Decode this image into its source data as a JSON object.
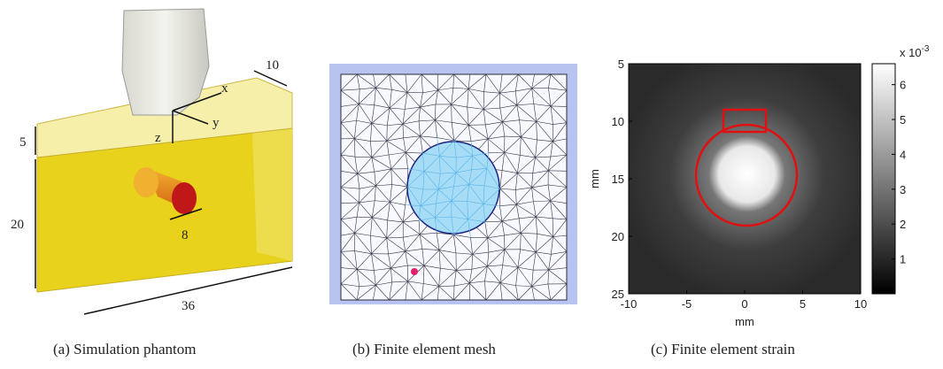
{
  "panels": [
    {
      "caption": "(a) Simulation phantom",
      "labels": {
        "back_width": 10,
        "axis_x": "x",
        "axis_y": "y",
        "axis_z": "z",
        "top_depth": 5,
        "height": 20,
        "diameter": 8,
        "length": 36
      }
    },
    {
      "caption": "(b) Finite element mesh"
    },
    {
      "caption": "(c) Finite element strain",
      "xlabel": "mm",
      "ylabel": "mm",
      "xlim": [
        -10,
        10
      ],
      "ylim": [
        25,
        5
      ],
      "xticks": [
        -10,
        -5,
        0,
        5,
        10
      ],
      "yticks": [
        5,
        10,
        15,
        20,
        25
      ],
      "colorbar": {
        "label": "x 10",
        "exponent": "-3",
        "lim": [
          0,
          6.6
        ],
        "ticks": [
          1,
          2,
          3,
          4,
          5,
          6
        ]
      }
    }
  ]
}
